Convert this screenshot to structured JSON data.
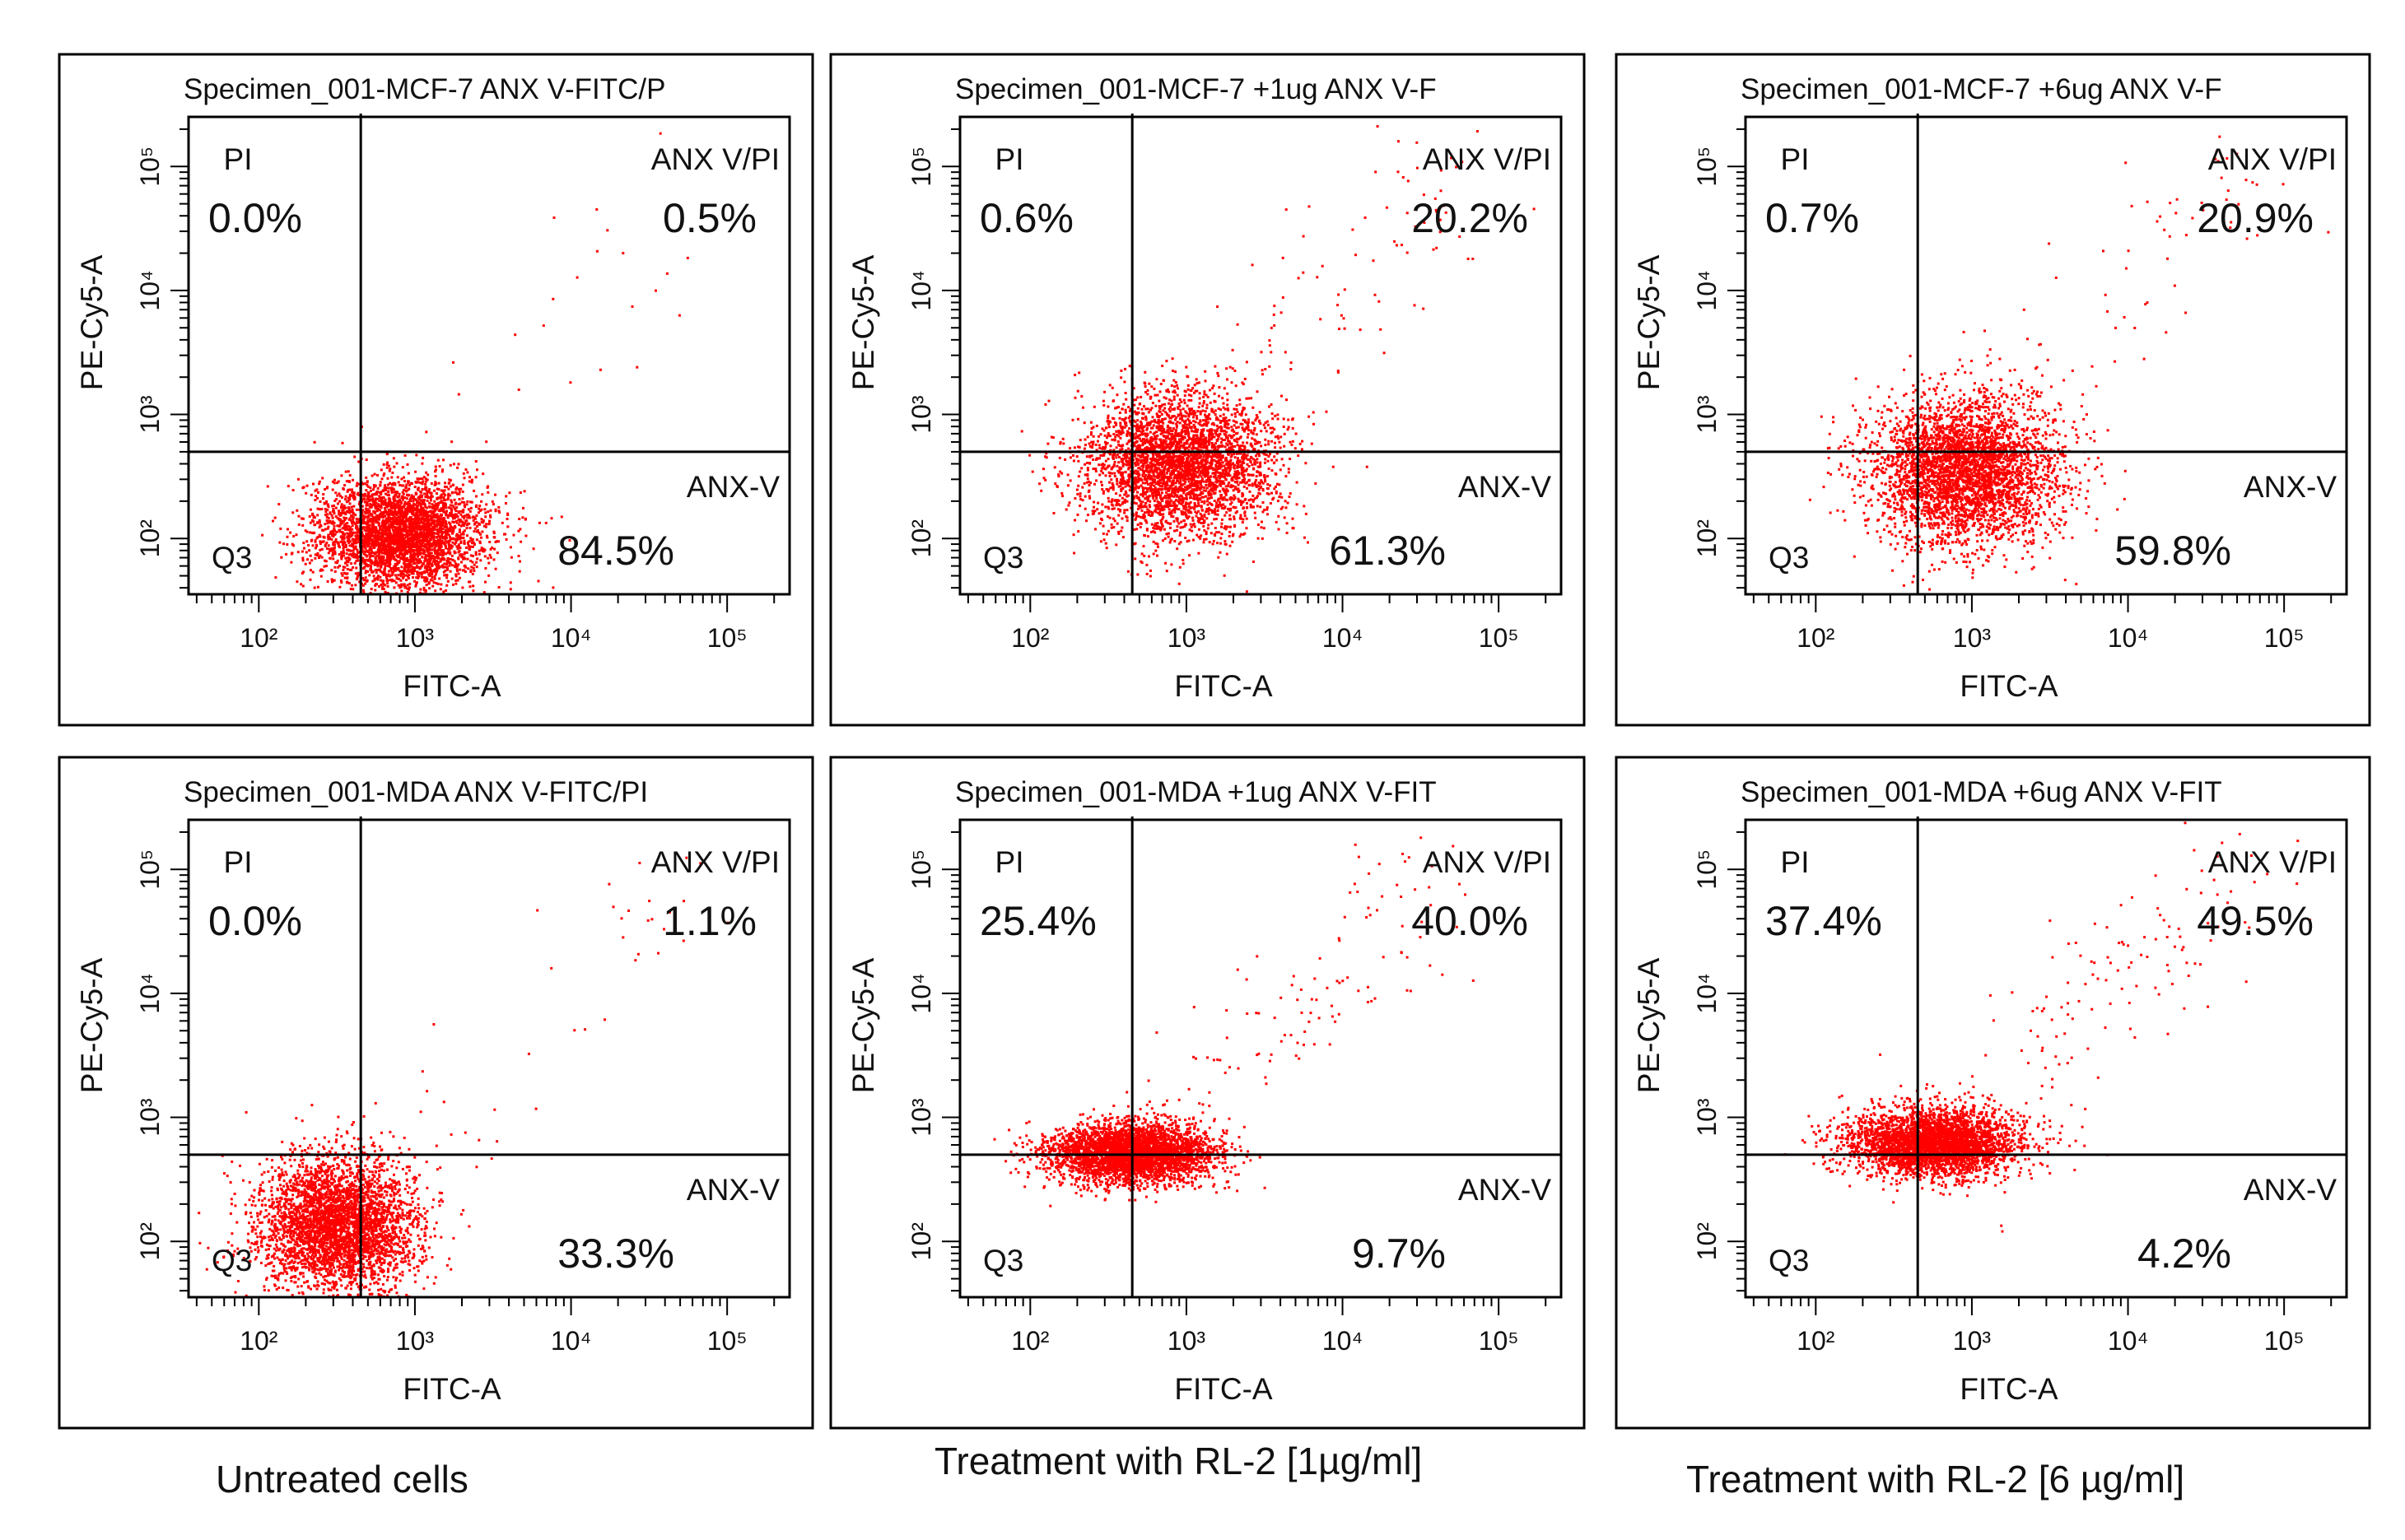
{
  "colors": {
    "dots": "#ff0000",
    "frame": "#000000",
    "background": "#ffffff"
  },
  "captions": [
    "Untreated cells",
    "Treatment with RL-2  [1µg/ml]",
    "Treatment with RL-2 [6 µg/ml]"
  ],
  "chart_data": [
    {
      "type": "scatter",
      "title": "Specimen_001-MCF-7  ANX V-FITC/P",
      "xlabel": "FITC-A",
      "ylabel": "PE-Cy5-A",
      "x_scale": "log",
      "y_scale": "log",
      "x_ticks": [
        "10²",
        "10³",
        "10⁴",
        "10⁵"
      ],
      "y_ticks": [
        "10²",
        "10³",
        "10⁴",
        "10⁵"
      ],
      "gate": {
        "x": 450,
        "y": 500
      },
      "quadrants": {
        "PI": {
          "label": "PI",
          "value": "0.0%"
        },
        "ANX_V_PI": {
          "label": "ANX V/PI",
          "value": "0.5%"
        },
        "ANX_V": {
          "label": "ANX-V",
          "value": "84.5%"
        },
        "Q3": {
          "label": "Q3",
          "value": ""
        }
      },
      "population": {
        "center_log": [
          2.9,
          2.05
        ],
        "spread_log": [
          0.27,
          0.22
        ],
        "tail_prob": 0.006,
        "count": 3800,
        "seed": 11
      }
    },
    {
      "type": "scatter",
      "title": "Specimen_001-MCF-7 +1ug ANX V-F",
      "xlabel": "FITC-A",
      "ylabel": "PE-Cy5-A",
      "x_scale": "log",
      "y_scale": "log",
      "x_ticks": [
        "10²",
        "10³",
        "10⁴",
        "10⁵"
      ],
      "y_ticks": [
        "10²",
        "10³",
        "10⁴",
        "10⁵"
      ],
      "gate": {
        "x": 450,
        "y": 500
      },
      "quadrants": {
        "PI": {
          "label": "PI",
          "value": "0.6%"
        },
        "ANX_V_PI": {
          "label": "ANX V/PI",
          "value": "20.2%"
        },
        "ANX_V": {
          "label": "ANX-V",
          "value": "61.3%"
        },
        "Q3": {
          "label": "Q3",
          "value": ""
        }
      },
      "population": {
        "center_log": [
          2.95,
          2.6
        ],
        "spread_log": [
          0.3,
          0.28
        ],
        "tail_prob": 0.03,
        "count": 3800,
        "seed": 23
      }
    },
    {
      "type": "scatter",
      "title": "Specimen_001-MCF-7 +6ug ANX V-F",
      "xlabel": "FITC-A",
      "ylabel": "PE-Cy5-A",
      "x_scale": "log",
      "y_scale": "log",
      "x_ticks": [
        "10²",
        "10³",
        "10⁴",
        "10⁵"
      ],
      "y_ticks": [
        "10²",
        "10³",
        "10⁴",
        "10⁵"
      ],
      "gate": {
        "x": 450,
        "y": 500
      },
      "quadrants": {
        "PI": {
          "label": "PI",
          "value": "0.7%"
        },
        "ANX_V_PI": {
          "label": "ANX V/PI",
          "value": "20.9%"
        },
        "ANX_V": {
          "label": "ANX-V",
          "value": "59.8%"
        },
        "Q3": {
          "label": "Q3",
          "value": ""
        }
      },
      "population": {
        "center_log": [
          2.95,
          2.55
        ],
        "spread_log": [
          0.3,
          0.3
        ],
        "tail_prob": 0.03,
        "count": 3800,
        "seed": 37
      }
    },
    {
      "type": "scatter",
      "title": "Specimen_001-MDA  ANX V-FITC/PI",
      "xlabel": "FITC-A",
      "ylabel": "PE-Cy5-A",
      "x_scale": "log",
      "y_scale": "log",
      "x_ticks": [
        "10²",
        "10³",
        "10⁴",
        "10⁵"
      ],
      "y_ticks": [
        "10²",
        "10³",
        "10⁴",
        "10⁵"
      ],
      "gate": {
        "x": 450,
        "y": 500
      },
      "quadrants": {
        "PI": {
          "label": "PI",
          "value": "0.0%"
        },
        "ANX_V_PI": {
          "label": "ANX V/PI",
          "value": "1.1%"
        },
        "ANX_V": {
          "label": "ANX-V",
          "value": "33.3%"
        },
        "Q3": {
          "label": "Q3",
          "value": ""
        }
      },
      "population": {
        "center_log": [
          2.5,
          2.15
        ],
        "spread_log": [
          0.25,
          0.26
        ],
        "tail_prob": 0.012,
        "count": 3800,
        "seed": 41
      }
    },
    {
      "type": "scatter",
      "title": "Specimen_001-MDA +1ug ANX V-FIT",
      "xlabel": "FITC-A",
      "ylabel": "PE-Cy5-A",
      "x_scale": "log",
      "y_scale": "log",
      "x_ticks": [
        "10²",
        "10³",
        "10⁴",
        "10⁵"
      ],
      "y_ticks": [
        "10²",
        "10³",
        "10⁴",
        "10⁵"
      ],
      "gate": {
        "x": 450,
        "y": 500
      },
      "quadrants": {
        "PI": {
          "label": "PI",
          "value": "25.4%"
        },
        "ANX_V_PI": {
          "label": "ANX V/PI",
          "value": "40.0%"
        },
        "ANX_V": {
          "label": "ANX-V",
          "value": "9.7%"
        },
        "Q3": {
          "label": "Q3",
          "value": ""
        }
      },
      "population": {
        "center_log": [
          2.65,
          2.72
        ],
        "spread_log": [
          0.26,
          0.12
        ],
        "tail_prob": 0.035,
        "count": 3800,
        "seed": 53
      }
    },
    {
      "type": "scatter",
      "title": "Specimen_001-MDA +6ug ANX V-FIT",
      "xlabel": "FITC-A",
      "ylabel": "PE-Cy5-A",
      "x_scale": "log",
      "y_scale": "log",
      "x_ticks": [
        "10²",
        "10³",
        "10⁴",
        "10⁵"
      ],
      "y_ticks": [
        "10²",
        "10³",
        "10⁴",
        "10⁵"
      ],
      "gate": {
        "x": 450,
        "y": 500
      },
      "quadrants": {
        "PI": {
          "label": "PI",
          "value": "37.4%"
        },
        "ANX_V_PI": {
          "label": "ANX V/PI",
          "value": "49.5%"
        },
        "ANX_V": {
          "label": "ANX-V",
          "value": "4.2%"
        },
        "Q3": {
          "label": "Q3",
          "value": ""
        }
      },
      "population": {
        "center_log": [
          2.75,
          2.8
        ],
        "spread_log": [
          0.27,
          0.13
        ],
        "tail_prob": 0.04,
        "count": 3800,
        "seed": 67
      }
    }
  ]
}
